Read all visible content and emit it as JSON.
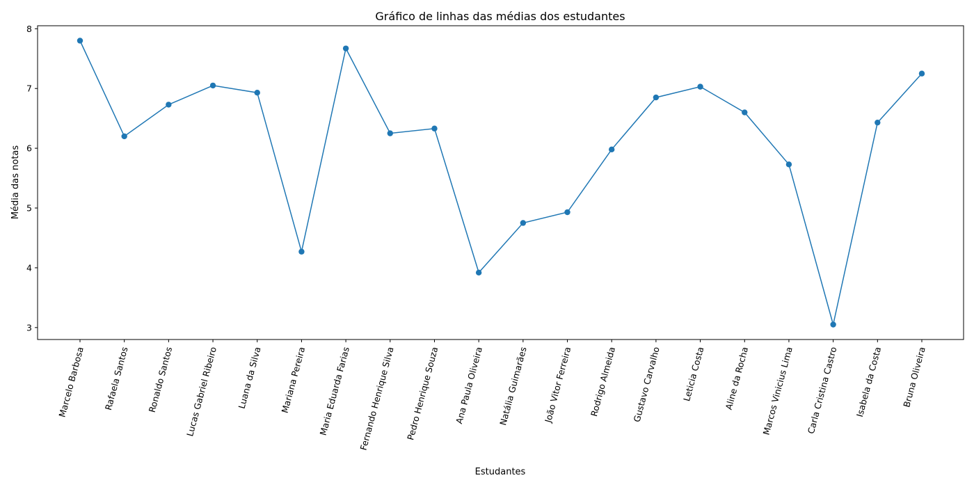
{
  "chart_data": {
    "type": "line",
    "title": "Gráfico de linhas das médias dos estudantes",
    "xlabel": "Estudantes",
    "ylabel": "Média das notas",
    "ylim": [
      2.8,
      8.05
    ],
    "yticks": [
      "3",
      "4",
      "5",
      "6",
      "7",
      "8"
    ],
    "grid": false,
    "legend": "none",
    "categories": [
      "Marcelo Barbosa",
      "Rafaela Santos",
      "Ronaldo Santos",
      "Lucas Gabriel Ribeiro",
      "Luana da Silva",
      "Mariana Pereira",
      "Maria Eduarda Farias",
      "Fernando Henrique Silva",
      "Pedro Henrique Souza",
      "Ana Paula Oliveira",
      "Natália Guimarães",
      "João Vitor Ferreira",
      "Rodrigo Almeida",
      "Gustavo Carvalho",
      "Leticia Costa",
      "Aline da Rocha",
      "Marcos Vinicius Lima",
      "Carla Cristina Castro",
      "Isabela da Costa",
      "Bruna Oliveira"
    ],
    "series": [
      {
        "color": "#1f77b4",
        "marker": "circle",
        "values": [
          7.8,
          6.2,
          6.73,
          7.05,
          6.93,
          4.27,
          7.67,
          6.25,
          6.33,
          3.92,
          4.75,
          4.93,
          5.98,
          6.85,
          7.03,
          6.6,
          5.73,
          3.05,
          6.43,
          7.25
        ]
      }
    ]
  }
}
